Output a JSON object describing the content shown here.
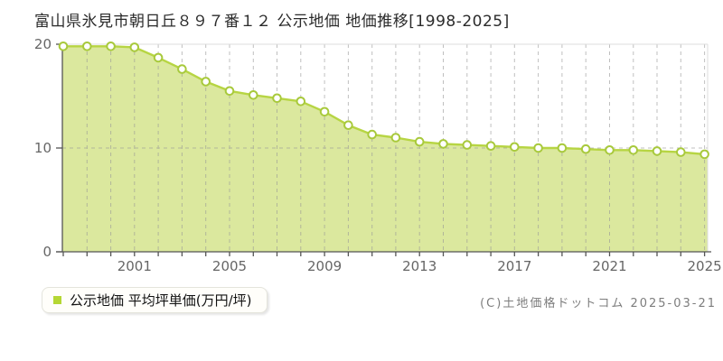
{
  "title": "富山県氷見市朝日丘８９７番１２ 公示地価 地価推移[1998-2025]",
  "legend": {
    "label": "公示地価 平均坪単価(万円/坪)",
    "marker_color": "#b5d733"
  },
  "footer": {
    "credit": "(C)土地価格ドットコム 2025-03-21"
  },
  "chart_data": {
    "type": "area",
    "title": "富山県氷見市朝日丘８９７番１２ 公示地価 地価推移[1998-2025]",
    "x": [
      1998,
      1999,
      2000,
      2001,
      2002,
      2003,
      2004,
      2005,
      2006,
      2007,
      2008,
      2009,
      2010,
      2011,
      2012,
      2013,
      2014,
      2015,
      2016,
      2017,
      2018,
      2019,
      2020,
      2021,
      2022,
      2023,
      2024,
      2025
    ],
    "series": [
      {
        "name": "公示地価 平均坪単価(万円/坪)",
        "values": [
          19.8,
          19.8,
          19.8,
          19.7,
          18.7,
          17.6,
          16.4,
          15.5,
          15.1,
          14.8,
          14.5,
          13.5,
          12.2,
          11.3,
          11.0,
          10.6,
          10.4,
          10.3,
          10.2,
          10.1,
          10.0,
          10.0,
          9.9,
          9.8,
          9.8,
          9.7,
          9.6,
          9.4
        ]
      }
    ],
    "xlabel": "",
    "ylabel": "",
    "ylim": [
      0,
      20
    ],
    "yticks": [
      0,
      10,
      20
    ],
    "xticks": [
      2001,
      2005,
      2009,
      2013,
      2017,
      2021,
      2025
    ],
    "grid": "vertical dashed per year; horizontal dashed at 10; light solid frame at top and right",
    "legend_position": "bottom-left",
    "colors": {
      "area_fill": "#dbe89e",
      "line": "#b7d543",
      "marker_fill": "#ffffff",
      "marker_stroke": "#a8c93c",
      "grid": "#969696",
      "frame": "#dddddd",
      "axis": "#555555",
      "tick_text": "#666666"
    }
  }
}
